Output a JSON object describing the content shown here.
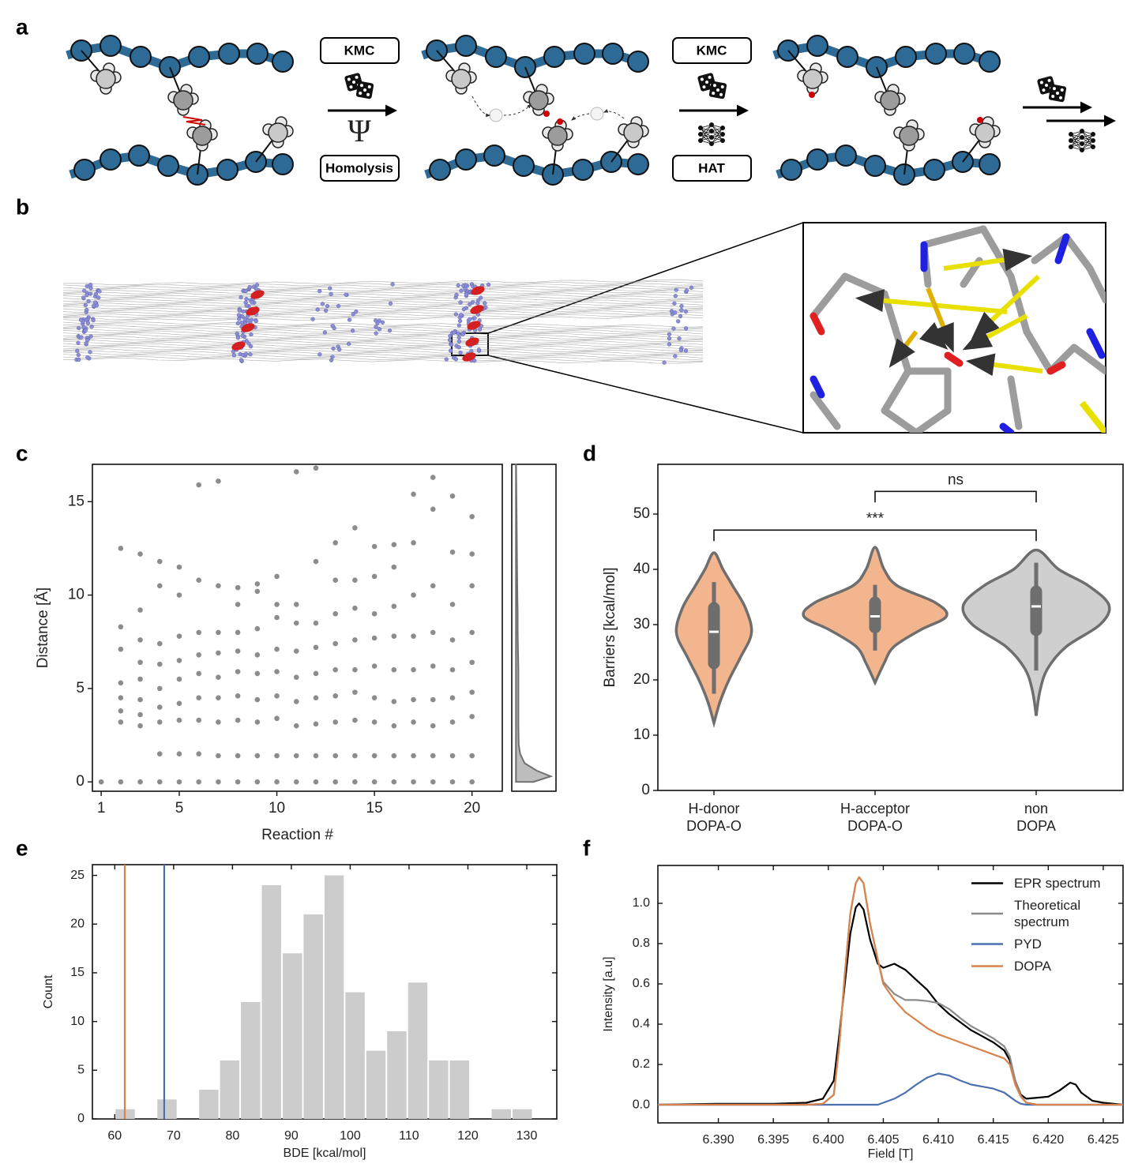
{
  "panel_labels": [
    "a",
    "b",
    "c",
    "d",
    "e",
    "f"
  ],
  "panel_a": {
    "step1": {
      "top": "KMC",
      "symbol": "Ψ",
      "bottom": "Homolysis"
    },
    "step2": {
      "top": "KMC",
      "bottom": "HAT"
    }
  },
  "chart_data": [
    {
      "type": "scatter",
      "x_label": "Reaction #",
      "y_label": "Distance [Å]",
      "color": "#000000",
      "xlim": [
        0.55,
        21.55
      ],
      "ylim": [
        -0.5,
        17
      ],
      "xticks": [
        1,
        5,
        10,
        15,
        20
      ],
      "yticks": [
        0,
        5,
        10,
        15
      ],
      "x": [
        1,
        2,
        3,
        4,
        5,
        6,
        7,
        8,
        9,
        10,
        11,
        12,
        13,
        14,
        15,
        16,
        17,
        18,
        19,
        20,
        2,
        2,
        2,
        2,
        2,
        2,
        2,
        3,
        3,
        3,
        3,
        3,
        3,
        3,
        3,
        4,
        4,
        4,
        4,
        4,
        4,
        4,
        4,
        5,
        5,
        5,
        5,
        5,
        5,
        5,
        5,
        6,
        6,
        6,
        6,
        6,
        6,
        6,
        6,
        7,
        7,
        7,
        7,
        7,
        7,
        7,
        7,
        8,
        8,
        8,
        8,
        8,
        8,
        8,
        8,
        9,
        9,
        9,
        9,
        9,
        9,
        9,
        9,
        10,
        10,
        10,
        10,
        10,
        10,
        10,
        10,
        11,
        11,
        11,
        11,
        11,
        11,
        11,
        11,
        12,
        12,
        12,
        12,
        12,
        12,
        12,
        12,
        13,
        13,
        13,
        13,
        13,
        13,
        13,
        13,
        14,
        14,
        14,
        14,
        14,
        14,
        14,
        14,
        15,
        15,
        15,
        15,
        15,
        15,
        15,
        15,
        16,
        16,
        16,
        16,
        16,
        16,
        16,
        16,
        17,
        17,
        17,
        17,
        17,
        17,
        17,
        17,
        18,
        18,
        18,
        18,
        18,
        18,
        18,
        18,
        19,
        19,
        19,
        19,
        19,
        19,
        19,
        19,
        20,
        20,
        20,
        20,
        20,
        20,
        20,
        20
      ],
      "y": [
        0,
        0,
        0,
        0,
        0,
        0,
        0,
        0,
        0,
        0,
        0,
        0,
        0,
        0,
        0,
        0,
        0,
        0,
        0,
        0,
        3.2,
        3.8,
        4.5,
        5.3,
        7.1,
        8.3,
        12.5,
        3.0,
        3.6,
        4.4,
        5.5,
        6.4,
        7.6,
        9.2,
        12.2,
        1.5,
        3.2,
        4.0,
        5.0,
        6.3,
        7.4,
        10.5,
        11.8,
        1.5,
        3.3,
        4.2,
        5.5,
        6.5,
        7.8,
        10.0,
        11.5,
        1.5,
        3.3,
        4.5,
        5.8,
        6.8,
        8.0,
        10.8,
        15.9,
        1.4,
        3.2,
        4.5,
        5.6,
        6.9,
        8.0,
        10.5,
        16.1,
        1.4,
        3.3,
        4.6,
        5.9,
        7.0,
        8.0,
        9.5,
        10.4,
        1.4,
        3.2,
        4.4,
        5.8,
        6.8,
        8.2,
        10.2,
        10.6,
        1.4,
        3.4,
        4.6,
        5.9,
        7.1,
        8.8,
        9.5,
        11.0,
        1.4,
        3.0,
        4.3,
        5.6,
        7.0,
        8.5,
        9.5,
        16.6,
        1.4,
        3.1,
        4.5,
        5.8,
        7.2,
        8.5,
        11.8,
        16.8,
        1.4,
        3.2,
        4.6,
        6.0,
        7.4,
        9.0,
        10.8,
        12.8,
        1.4,
        3.3,
        4.8,
        6.0,
        7.6,
        9.3,
        10.8,
        13.6,
        1.4,
        3.2,
        4.5,
        6.2,
        7.7,
        9.0,
        11.0,
        12.6,
        1.4,
        3.0,
        4.3,
        6.0,
        7.8,
        9.4,
        11.5,
        12.7,
        1.4,
        3.2,
        4.4,
        6.0,
        7.8,
        10.0,
        12.8,
        15.4,
        1.4,
        3.0,
        4.4,
        6.2,
        8.0,
        10.5,
        14.6,
        16.3,
        1.4,
        3.2,
        4.5,
        6.0,
        7.6,
        9.5,
        12.3,
        15.3,
        1.4,
        3.5,
        4.8,
        6.4,
        8.0,
        10.5,
        12.2,
        14.2
      ]
    },
    {
      "type": "density",
      "color": "#bdbdbd",
      "xlim": [
        -0.12,
        1.15
      ],
      "ylim": [
        -0.5,
        17
      ],
      "y": [
        0,
        0.3,
        0.6,
        1,
        1.5,
        2,
        3,
        4,
        5,
        6,
        7,
        8,
        9,
        10,
        12,
        14,
        16,
        17
      ],
      "density": [
        0.5,
        1,
        0.6,
        0.25,
        0.12,
        0.08,
        0.07,
        0.07,
        0.07,
        0.07,
        0.06,
        0.05,
        0.05,
        0.04,
        0.03,
        0.02,
        0.01,
        0.005
      ]
    },
    {
      "type": "violin",
      "y_label": "Barriers [kcal/mol]",
      "ylim": [
        0,
        59
      ],
      "yticks": [
        0,
        10,
        20,
        30,
        40,
        50
      ],
      "categories": [
        "H-donor\nDOPA-O",
        "H-acceptor\nDOPA-O",
        "non\nDOPA"
      ],
      "colors": [
        "#f3b58e",
        "#f3b58e",
        "#cfcfcf"
      ],
      "violins": [
        {
          "ys": [
            12.2,
            16,
            20,
            24,
            28.5,
            33,
            37,
            40,
            43
          ],
          "widths": [
            0,
            0.08,
            0.2,
            0.35,
            0.5,
            0.42,
            0.25,
            0.12,
            0
          ],
          "whisker": [
            17.5,
            37.7
          ],
          "box": [
            23,
            33
          ],
          "median": 28.7
        },
        {
          "ys": [
            19.5,
            23,
            26,
            29,
            31.5,
            34,
            37,
            40,
            44
          ],
          "widths": [
            0,
            0.12,
            0.25,
            0.6,
            0.95,
            0.8,
            0.3,
            0.12,
            0
          ],
          "whisker": [
            25.3,
            37.2
          ],
          "box": [
            29.5,
            34
          ],
          "median": 31.5
        },
        {
          "ys": [
            13.5,
            18,
            22,
            26,
            30,
            33.5,
            37,
            40,
            43.5
          ],
          "widths": [
            0,
            0.05,
            0.15,
            0.4,
            0.85,
            0.97,
            0.7,
            0.3,
            0
          ],
          "whisker": [
            21.7,
            41.2
          ],
          "box": [
            29,
            36
          ],
          "median": 33.3
        }
      ],
      "annotations": [
        {
          "text": "***",
          "from": 0,
          "to": 2,
          "y": 47.1
        },
        {
          "text": "ns",
          "from": 1,
          "to": 2,
          "y": 54.1
        }
      ]
    },
    {
      "type": "histogram",
      "x_label": "BDE [kcal/mol]",
      "y_label": "Count",
      "color": "#cccccc",
      "xlim": [
        56.2,
        135.1
      ],
      "ylim": [
        0,
        26.1
      ],
      "xticks": [
        60,
        70,
        80,
        90,
        100,
        110,
        120,
        130
      ],
      "yticks": [
        0,
        5,
        10,
        15,
        20,
        25
      ],
      "bins": [
        60,
        63.55,
        67.1,
        70.65,
        74.2,
        77.75,
        81.3,
        84.85,
        88.4,
        91.95,
        95.5,
        99.05,
        102.6,
        106.15,
        109.7,
        113.25,
        116.8,
        120.35,
        123.9,
        127.45,
        131
      ],
      "counts": [
        1,
        0,
        2,
        0,
        3,
        6,
        12,
        24,
        17,
        21,
        25,
        13,
        7,
        9,
        14,
        6,
        6,
        0,
        1,
        1
      ],
      "vlines": [
        {
          "value": 61.7,
          "color": "#d8834b"
        },
        {
          "value": 68.4,
          "color": "#4a70b0"
        }
      ]
    },
    {
      "type": "line",
      "x_label": "Field [T]",
      "y_label": "Intensity [a.u]",
      "legend": "upper right",
      "xlim": [
        6.3845,
        6.4268
      ],
      "ylim": [
        -0.09,
        1.188
      ],
      "xticks": [
        {
          "value": 6.39,
          "label": "6.390"
        },
        6.395,
        {
          "value": 6.4,
          "label": "6.400"
        },
        6.405,
        {
          "value": 6.41,
          "label": "6.410"
        },
        6.415,
        {
          "value": 6.42,
          "label": "6.420"
        },
        6.425
      ],
      "yticks": [
        {
          "value": 0,
          "label": "0.0"
        },
        0.2,
        0.4,
        0.6,
        0.8,
        {
          "value": 1,
          "label": "1.0"
        }
      ],
      "x": [
        6.3845,
        6.39,
        6.395,
        6.398,
        6.3995,
        6.4005,
        6.401,
        6.4015,
        6.402,
        6.4025,
        6.4028,
        6.4032,
        6.4038,
        6.4045,
        6.405,
        6.406,
        6.407,
        6.408,
        6.409,
        6.41,
        6.411,
        6.412,
        6.413,
        6.414,
        6.415,
        6.416,
        6.4165,
        6.417,
        6.4175,
        6.418,
        6.419,
        6.42,
        6.421,
        6.422,
        6.4225,
        6.423,
        6.424,
        6.425,
        6.4268
      ],
      "series": [
        {
          "name": "EPR spectrum",
          "color": "#000000",
          "values": [
            0,
            0.005,
            0.005,
            0.01,
            0.03,
            0.12,
            0.35,
            0.6,
            0.85,
            0.98,
            1.0,
            0.97,
            0.82,
            0.7,
            0.68,
            0.7,
            0.67,
            0.62,
            0.57,
            0.5,
            0.45,
            0.41,
            0.37,
            0.34,
            0.31,
            0.27,
            0.22,
            0.12,
            0.05,
            0.03,
            0.035,
            0.04,
            0.07,
            0.11,
            0.1,
            0.06,
            0.02,
            0.01,
            0
          ]
        },
        {
          "name": "Theoretical\nspectrum",
          "color": "#8a8a8a",
          "values": [
            0,
            0,
            0,
            0,
            0.005,
            0.05,
            0.3,
            0.65,
            0.95,
            1.1,
            1.13,
            1.1,
            0.9,
            0.72,
            0.61,
            0.55,
            0.52,
            0.52,
            0.515,
            0.505,
            0.475,
            0.43,
            0.39,
            0.36,
            0.33,
            0.29,
            0.24,
            0.12,
            0.045,
            0.01,
            0,
            0,
            0,
            0,
            0,
            0,
            0,
            0,
            0
          ]
        },
        {
          "name": "PYD",
          "color": "#4a70b0",
          "values": [
            0,
            0,
            0,
            0,
            0,
            0,
            0,
            0,
            0,
            0,
            0,
            0,
            0,
            0,
            0.01,
            0.03,
            0.06,
            0.1,
            0.135,
            0.155,
            0.145,
            0.12,
            0.1,
            0.09,
            0.08,
            0.06,
            0.04,
            0.02,
            0.005,
            0,
            0,
            0,
            0,
            0,
            0,
            0,
            0,
            0,
            0
          ]
        },
        {
          "name": "DOPA",
          "color": "#d8834b",
          "values": [
            0,
            0,
            0,
            0,
            0.005,
            0.05,
            0.3,
            0.65,
            0.95,
            1.1,
            1.13,
            1.1,
            0.9,
            0.72,
            0.6,
            0.52,
            0.46,
            0.42,
            0.38,
            0.35,
            0.33,
            0.31,
            0.29,
            0.27,
            0.25,
            0.23,
            0.2,
            0.1,
            0.04,
            0.01,
            0,
            0,
            0,
            0,
            0,
            0,
            0,
            0,
            0
          ]
        }
      ]
    }
  ]
}
